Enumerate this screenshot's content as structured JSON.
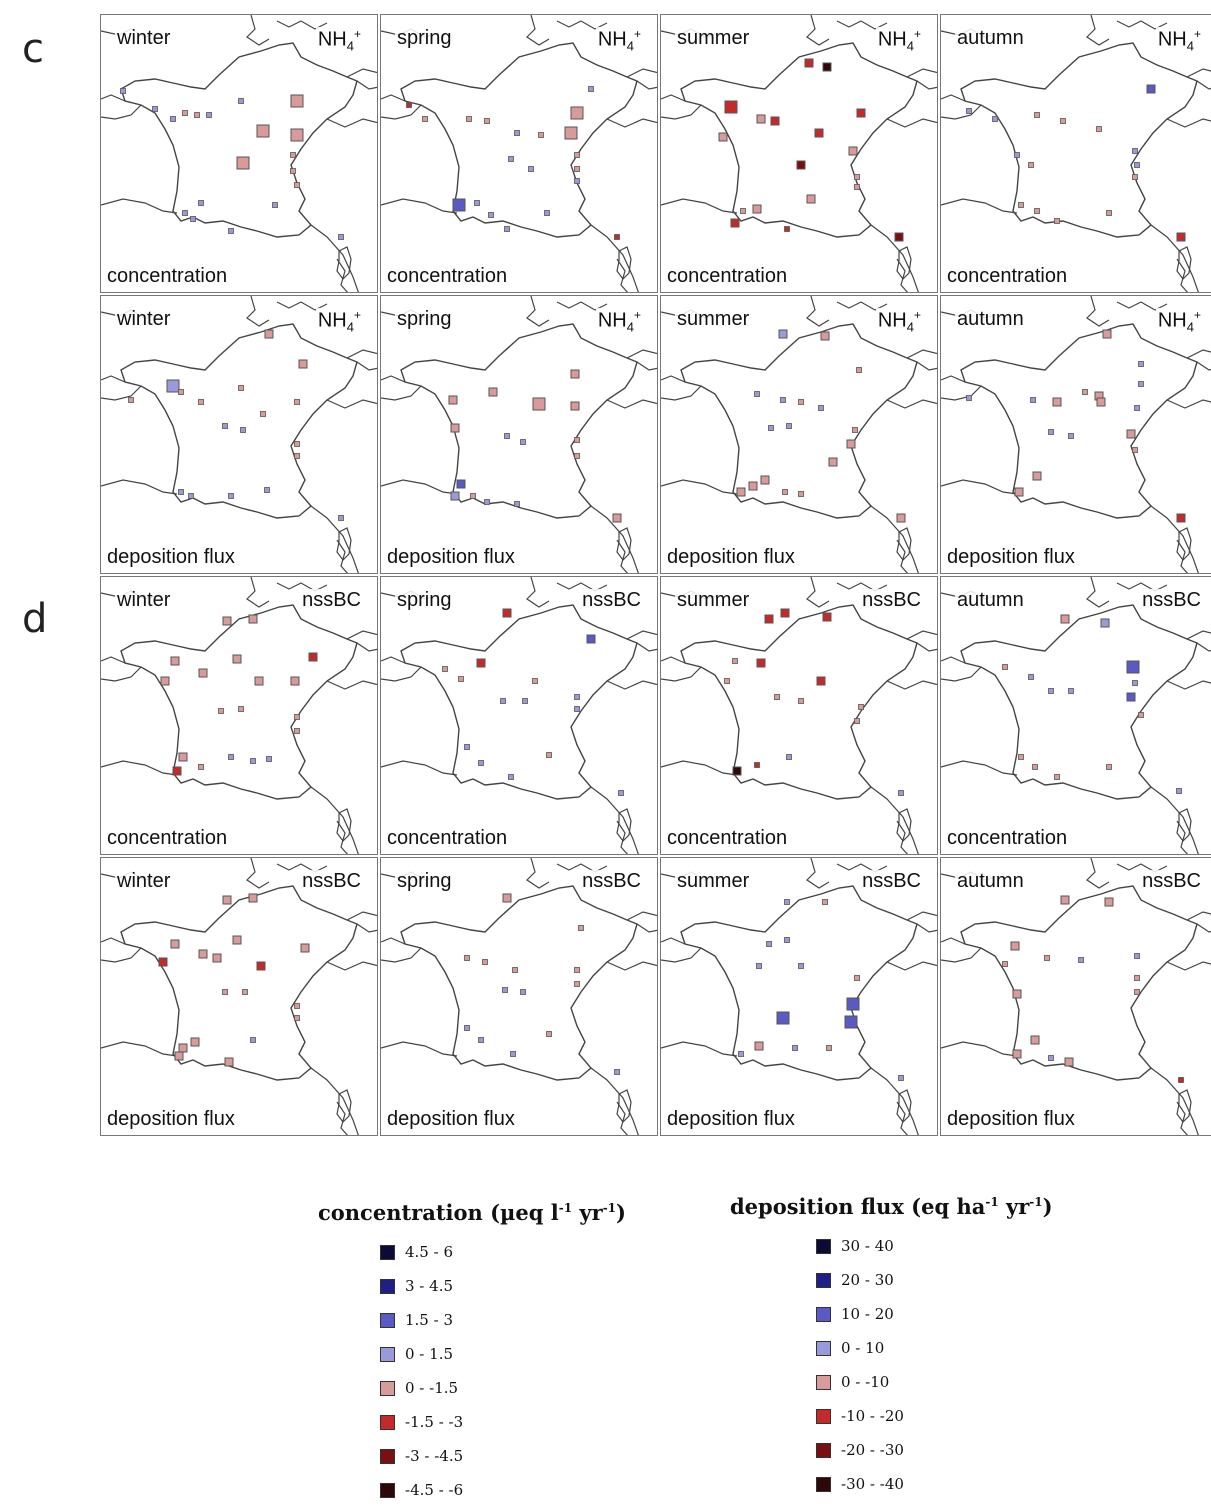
{
  "sections": [
    {
      "label": "c",
      "species_main": "NH",
      "species_sub": "4",
      "species_sup": "+"
    },
    {
      "label": "d",
      "species_main": "nssBC",
      "species_sub": "",
      "species_sup": ""
    }
  ],
  "seasons": [
    "winter",
    "spring",
    "summer",
    "autumn"
  ],
  "panel_types": [
    "concentration",
    "deposition flux"
  ],
  "colors": {
    "c1": "#0b0b35",
    "c2": "#1f1f86",
    "c3": "#5a5ac4",
    "c4": "#9a9adb",
    "c5": "#d99a9a",
    "c6": "#c42a2a",
    "c7": "#7a0f0f",
    "c8": "#2e0808",
    "map_line": "#444444",
    "box_border": "#555555"
  },
  "legend": {
    "concentration": {
      "title_main": "concentration (µeq l",
      "title_sup1": "-1",
      "title_mid": " yr",
      "title_sup2": "-1",
      "title_end": ")",
      "items": [
        "4.5 -  6",
        "3   - 4.5",
        "1.5 -  3",
        "0   - 1.5",
        "0   - -1.5",
        "-1.5 - -3",
        "-3   - -4.5",
        "-4.5 - -6"
      ]
    },
    "deposition": {
      "title_main": "deposition flux (eq ha",
      "title_sup1": "-1",
      "title_mid": " yr",
      "title_sup2": "-1",
      "title_end": ")",
      "items": [
        "30 -  40",
        "20 -  30",
        "10 -  20",
        "0 -  10",
        "0 - -10",
        "-10 - -20",
        "-20 - -30",
        "-30 - -40"
      ]
    },
    "color_keys": [
      "c1",
      "c2",
      "c3",
      "c4",
      "c5",
      "c6",
      "c7",
      "c8"
    ]
  }
}
